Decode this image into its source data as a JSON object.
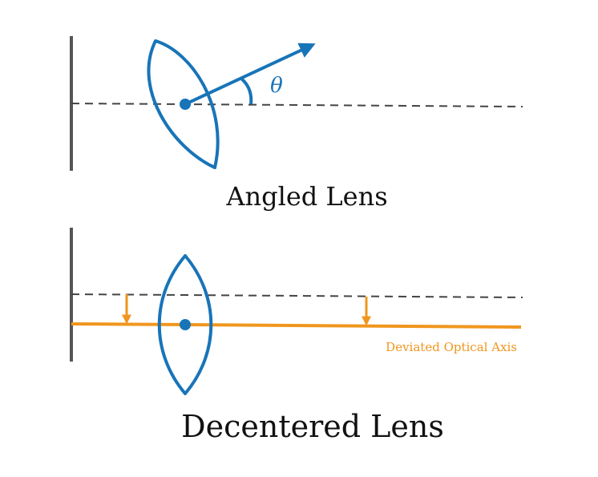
{
  "angled_panel": {
    "caption": "Angled Lens",
    "angle_symbol": "θ"
  },
  "decentered_panel": {
    "caption": "Decentered Lens",
    "deviated_axis_label": "Deviated Optical Axis"
  },
  "colors": {
    "lens": "#1874b8",
    "sensor": "#555555",
    "optical_axis_dashed": "#444444",
    "deviated_axis": "#f0961e",
    "caption_text": "#111111"
  }
}
